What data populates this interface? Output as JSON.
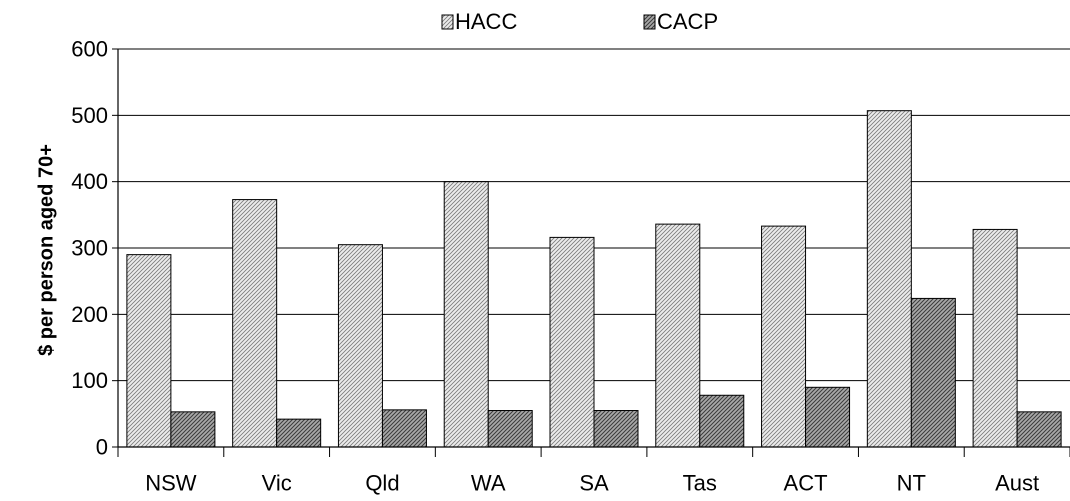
{
  "chart_data": {
    "type": "bar",
    "title": "",
    "xlabel": "",
    "ylabel": "$ per person aged 70+",
    "ylim": [
      0,
      600
    ],
    "yticks": [
      0,
      100,
      200,
      300,
      400,
      500,
      600
    ],
    "grid": true,
    "legend_position": "top",
    "categories": [
      "NSW",
      "Vic",
      "Qld",
      "WA",
      "SA",
      "Tas",
      "ACT",
      "NT",
      "Aust"
    ],
    "series": [
      {
        "name": "HACC",
        "pattern": "light-diagonal-hatch",
        "color": "#d9d9d9",
        "values": [
          290,
          373,
          305,
          400,
          316,
          336,
          333,
          507,
          328
        ]
      },
      {
        "name": "CACP",
        "pattern": "dark-diagonal-hatch",
        "color": "#8a8a8a",
        "values": [
          53,
          42,
          56,
          55,
          55,
          78,
          90,
          224,
          53
        ]
      }
    ]
  }
}
